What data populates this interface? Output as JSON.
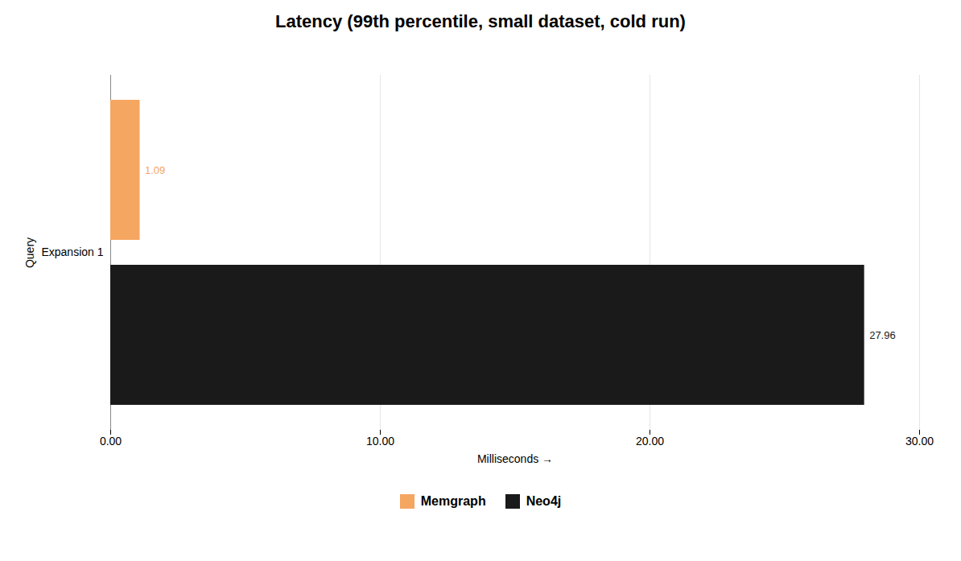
{
  "chart_data": {
    "type": "bar",
    "orientation": "horizontal",
    "title": "Latency (99th percentile, small dataset, cold run)",
    "xlabel": "Milliseconds",
    "ylabel": "Query",
    "categories": [
      "Expansion 1"
    ],
    "series": [
      {
        "name": "Memgraph",
        "color": "#F5A661",
        "values": [
          1.09
        ]
      },
      {
        "name": "Neo4j",
        "color": "#1a1a1a",
        "values": [
          27.96
        ]
      }
    ],
    "xlim": [
      0,
      30.0
    ],
    "xticks": [
      {
        "value": 0.0,
        "label": "0.00"
      },
      {
        "value": 10.0,
        "label": "10.00"
      },
      {
        "value": 20.0,
        "label": "20.00"
      },
      {
        "value": 30.0,
        "label": "30.00"
      }
    ],
    "grid": true,
    "legend": "bottom",
    "data_labels": true
  }
}
